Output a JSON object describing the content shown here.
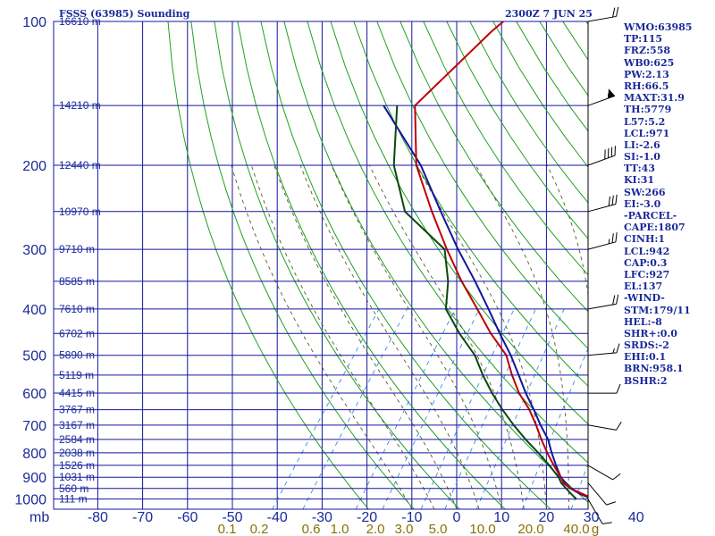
{
  "header": {
    "station": "FSSS (63985) Sounding",
    "time": "2300Z  7 JUN 25"
  },
  "chart_data": {
    "type": "skew-t",
    "pressure_ticks": [
      100,
      200,
      300,
      400,
      500,
      600,
      700,
      800,
      900,
      1000
    ],
    "pressure_unit": "mb",
    "temperature_ticks": [
      -80,
      -70,
      -60,
      -50,
      -40,
      -30,
      -20,
      -10,
      0,
      10,
      20,
      30,
      40
    ],
    "mixing_ratio_labels": [
      "0.1",
      "0.2",
      "0.6",
      "1.0",
      "2.0",
      "3.0",
      "5.0",
      "10.0",
      "20.0",
      "40.0"
    ],
    "mixing_ratio_unit": "g",
    "height_labels": [
      {
        "p": 100,
        "label": "16610 m"
      },
      {
        "p": 150,
        "label": "14210 m"
      },
      {
        "p": 200,
        "label": "12440 m"
      },
      {
        "p": 250,
        "label": "10970 m"
      },
      {
        "p": 300,
        "label": "9710 m"
      },
      {
        "p": 350,
        "label": "8585 m"
      },
      {
        "p": 400,
        "label": "7610 m"
      },
      {
        "p": 450,
        "label": "6702 m"
      },
      {
        "p": 500,
        "label": "5890 m"
      },
      {
        "p": 550,
        "label": "5119 m"
      },
      {
        "p": 600,
        "label": "4415 m"
      },
      {
        "p": 650,
        "label": "3767 m"
      },
      {
        "p": 700,
        "label": "3167 m"
      },
      {
        "p": 750,
        "label": "2584 m"
      },
      {
        "p": 800,
        "label": "2038 m"
      },
      {
        "p": 850,
        "label": "1526 m"
      },
      {
        "p": 900,
        "label": "1031 m"
      },
      {
        "p": 950,
        "label": "560 m"
      },
      {
        "p": 1000,
        "label": "111 m"
      }
    ],
    "series": [
      {
        "name": "parcel",
        "color": "#1414a0",
        "points": [
          [
            1000,
            28.5
          ],
          [
            975,
            25
          ],
          [
            950,
            22
          ],
          [
            925,
            20
          ],
          [
            900,
            18
          ],
          [
            850,
            15
          ],
          [
            800,
            12
          ],
          [
            750,
            9
          ],
          [
            700,
            5
          ],
          [
            650,
            1
          ],
          [
            600,
            -3.5
          ],
          [
            550,
            -8
          ],
          [
            500,
            -13
          ],
          [
            450,
            -19
          ],
          [
            400,
            -25.5
          ],
          [
            350,
            -33
          ],
          [
            300,
            -42
          ],
          [
            250,
            -52
          ],
          [
            200,
            -64
          ],
          [
            150,
            -82
          ]
        ]
      },
      {
        "name": "temperature",
        "color": "#c00000",
        "points": [
          [
            1000,
            29
          ],
          [
            975,
            25.5
          ],
          [
            950,
            22
          ],
          [
            925,
            19.5
          ],
          [
            900,
            18
          ],
          [
            850,
            14.5
          ],
          [
            800,
            11
          ],
          [
            750,
            7.5
          ],
          [
            700,
            4
          ],
          [
            650,
            0
          ],
          [
            600,
            -5
          ],
          [
            550,
            -9.5
          ],
          [
            500,
            -14
          ],
          [
            450,
            -21
          ],
          [
            400,
            -28
          ],
          [
            350,
            -36
          ],
          [
            300,
            -44.5
          ],
          [
            250,
            -54
          ],
          [
            200,
            -65
          ],
          [
            150,
            -75
          ],
          [
            105,
            -70
          ],
          [
            100,
            -69
          ]
        ]
      },
      {
        "name": "dewpoint",
        "color": "#0a4a0a",
        "points": [
          [
            1000,
            25
          ],
          [
            975,
            23
          ],
          [
            950,
            21
          ],
          [
            925,
            19
          ],
          [
            900,
            17.5
          ],
          [
            850,
            13.5
          ],
          [
            800,
            9
          ],
          [
            750,
            4
          ],
          [
            700,
            -1
          ],
          [
            650,
            -6
          ],
          [
            600,
            -11
          ],
          [
            550,
            -16
          ],
          [
            500,
            -21
          ],
          [
            450,
            -28
          ],
          [
            400,
            -35
          ],
          [
            350,
            -39
          ],
          [
            300,
            -45
          ],
          [
            250,
            -60
          ],
          [
            200,
            -70
          ],
          [
            150,
            -79
          ]
        ]
      }
    ],
    "wind_barbs": [
      {
        "p": 100,
        "dir": 260,
        "spd": 20
      },
      {
        "p": 150,
        "dir": 250,
        "spd": 55
      },
      {
        "p": 200,
        "dir": 250,
        "spd": 40
      },
      {
        "p": 250,
        "dir": 255,
        "spd": 30
      },
      {
        "p": 300,
        "dir": 255,
        "spd": 25
      },
      {
        "p": 400,
        "dir": 260,
        "spd": 20
      },
      {
        "p": 500,
        "dir": 265,
        "spd": 15
      },
      {
        "p": 600,
        "dir": 270,
        "spd": 10
      },
      {
        "p": 700,
        "dir": 280,
        "spd": 10
      },
      {
        "p": 850,
        "dir": 300,
        "spd": 10
      },
      {
        "p": 925,
        "dir": 320,
        "spd": 10
      },
      {
        "p": 1000,
        "dir": 330,
        "spd": 10
      }
    ]
  },
  "indices": [
    "WMO:63985",
    "TP:115",
    "FRZ:558",
    "WB0:625",
    "PW:2.13",
    "RH:66.5",
    "MAXT:31.9",
    "TH:5779",
    "L57:5.2",
    "LCL:971",
    "LI:-2.6",
    "SI:-1.0",
    "TT:43",
    "KI:31",
    "SW:266",
    "EI:-3.0",
    "-PARCEL-",
    "CAPE:1807",
    "CINH:1",
    "LCL:942",
    "CAP:0.3",
    "LFC:927",
    "EL:137",
    "-WIND-",
    "STM:179/11",
    "HEL:-8",
    "SHR+:0.0",
    "SRDS:-2",
    "EHI:0.1",
    "BRN:958.1",
    "BSHR:2"
  ]
}
